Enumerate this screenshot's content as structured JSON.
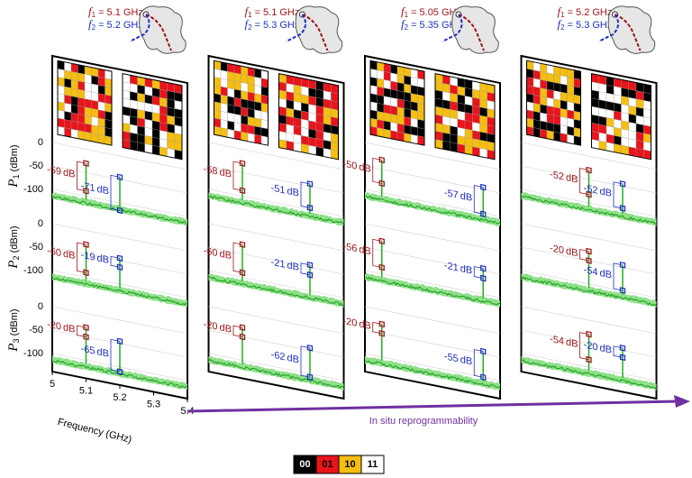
{
  "units": {
    "freq": "GHz",
    "db": "dB",
    "power": "(dBm)"
  },
  "freq_symbol": "f",
  "power_symbol": "P",
  "eq": "=",
  "freq_indices": [
    "1",
    "2"
  ],
  "panels": [
    {
      "f1": 5.1,
      "f2": 5.2,
      "rows": [
        {
          "red": -59,
          "blue": -71
        },
        {
          "red": -60,
          "blue": -19
        },
        {
          "red": -20,
          "blue": -65
        }
      ]
    },
    {
      "f1": 5.1,
      "f2": 5.3,
      "rows": [
        {
          "red": -58,
          "blue": -51
        },
        {
          "red": -60,
          "blue": -21
        },
        {
          "red": -20,
          "blue": -62
        }
      ]
    },
    {
      "f1": 5.05,
      "f2": 5.35,
      "rows": [
        {
          "red": -50,
          "blue": -57
        },
        {
          "red": -56,
          "blue": -21
        },
        {
          "red": -20,
          "blue": -55
        }
      ]
    },
    {
      "f1": 5.2,
      "f2": 5.3,
      "rows": [
        {
          "red": -52,
          "blue": -52
        },
        {
          "red": -20,
          "blue": -54
        },
        {
          "red": -54,
          "blue": -20
        }
      ]
    }
  ],
  "power_indices": [
    "1",
    "2",
    "3"
  ],
  "y_ticks": [
    0,
    -50,
    -100
  ],
  "x_axis": {
    "label": "Frequency (GHz)",
    "ticks": [
      5,
      5.1,
      5.2,
      5.3,
      5.4
    ]
  },
  "arrow_label": "In situ reprogrammability",
  "legend": [
    {
      "label": "00",
      "color": "#000000"
    },
    {
      "label": "01",
      "color": "#e8141b"
    },
    {
      "label": "10",
      "color": "#f5be10"
    },
    {
      "label": "11",
      "color": "#ffffff"
    }
  ]
}
